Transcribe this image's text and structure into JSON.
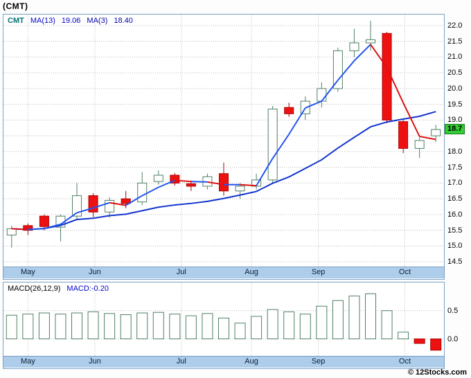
{
  "title": "(CMT)",
  "watermark": "© 12Stocks.com",
  "price_panel": {
    "legend": {
      "symbol": "CMT",
      "ma13_label": "MA(13)",
      "ma13_value": "19.06",
      "ma3_label": "MA(3)",
      "ma3_value": "18.40"
    },
    "last_price_label": "18.7"
  },
  "macd_panel": {
    "label": "MACD(26,12,9)",
    "value_label": "MACD:-0.20"
  },
  "colors": {
    "up_fill": "#ffffff",
    "up_stroke": "#4f7f63",
    "down_fill": "#ee1111",
    "down_stroke": "#aa0000",
    "ma13": "#1133cc",
    "ma3": "#2255ee",
    "ma3_down": "#dd1111",
    "grid": "#bbbbbb",
    "band_bg": "#aecdea",
    "panel_border": "#7aa0c4",
    "last_price_bg": "#33cc33"
  },
  "chart_data": [
    {
      "type": "candlestick",
      "title": "(CMT) weekly price with MA(13) and MA(3)",
      "months": [
        "May",
        "Jun",
        "Jul",
        "Aug",
        "Sep",
        "Oct"
      ],
      "month_positions": [
        2,
        6.1,
        11.4,
        15.7,
        19.8,
        25.1
      ],
      "axis": {
        "min": 14.35,
        "max": 22.35,
        "label_min": 14.5,
        "label_max": 22.0,
        "tick_step": 0.5,
        "skip_labels": [
          18.5
        ]
      },
      "ohlc_order": [
        "open",
        "high",
        "low",
        "close"
      ],
      "candles": [
        [
          15.35,
          15.65,
          14.95,
          15.55
        ],
        [
          15.65,
          15.72,
          15.35,
          15.5
        ],
        [
          15.95,
          16.0,
          15.5,
          15.62
        ],
        [
          15.6,
          16.0,
          15.15,
          15.95
        ],
        [
          15.95,
          17.0,
          15.85,
          16.6
        ],
        [
          16.6,
          16.68,
          15.92,
          16.08
        ],
        [
          16.08,
          16.55,
          15.9,
          16.45
        ],
        [
          16.5,
          16.75,
          16.2,
          16.35
        ],
        [
          16.4,
          17.35,
          16.3,
          17.0
        ],
        [
          17.05,
          17.4,
          16.95,
          17.25
        ],
        [
          17.25,
          17.32,
          16.92,
          17.0
        ],
        [
          16.98,
          17.08,
          16.75,
          16.9
        ],
        [
          16.9,
          17.3,
          16.8,
          17.2
        ],
        [
          17.3,
          17.65,
          16.6,
          16.75
        ],
        [
          16.75,
          17.0,
          16.5,
          16.9
        ],
        [
          16.9,
          17.3,
          16.8,
          17.1
        ],
        [
          17.1,
          19.45,
          17.0,
          19.35
        ],
        [
          19.4,
          19.55,
          19.1,
          19.2
        ],
        [
          19.2,
          19.75,
          19.0,
          19.6
        ],
        [
          19.6,
          20.2,
          19.4,
          20.0
        ],
        [
          20.0,
          21.3,
          19.9,
          21.2
        ],
        [
          21.2,
          21.9,
          21.0,
          21.45
        ],
        [
          21.45,
          22.15,
          21.2,
          21.55
        ],
        [
          21.75,
          21.8,
          18.9,
          19.0
        ],
        [
          18.95,
          19.0,
          17.95,
          18.1
        ],
        [
          18.1,
          18.5,
          17.8,
          18.35
        ],
        [
          18.5,
          18.85,
          18.3,
          18.7
        ]
      ],
      "ma_periods": [
        13,
        3
      ],
      "ma_last_values": {
        "ma13": 19.06,
        "ma3": 18.4
      },
      "last_price": 18.7
    },
    {
      "type": "bar",
      "title": "MACD(26,12,9) histogram",
      "months": [
        "May",
        "Jun",
        "Jul",
        "Aug",
        "Sep",
        "Oct"
      ],
      "month_positions": [
        2,
        6.1,
        11.4,
        15.7,
        19.8,
        25.1
      ],
      "axis": {
        "min": -0.3,
        "max": 1.0,
        "ticks": [
          0.5,
          0.0
        ]
      },
      "last_value": -0.2,
      "values": [
        0.42,
        0.44,
        0.46,
        0.44,
        0.46,
        0.48,
        0.45,
        0.43,
        0.46,
        0.47,
        0.44,
        0.41,
        0.45,
        0.37,
        0.28,
        0.4,
        0.52,
        0.48,
        0.44,
        0.58,
        0.68,
        0.76,
        0.8,
        0.5,
        0.12,
        -0.08,
        -0.2
      ]
    }
  ]
}
